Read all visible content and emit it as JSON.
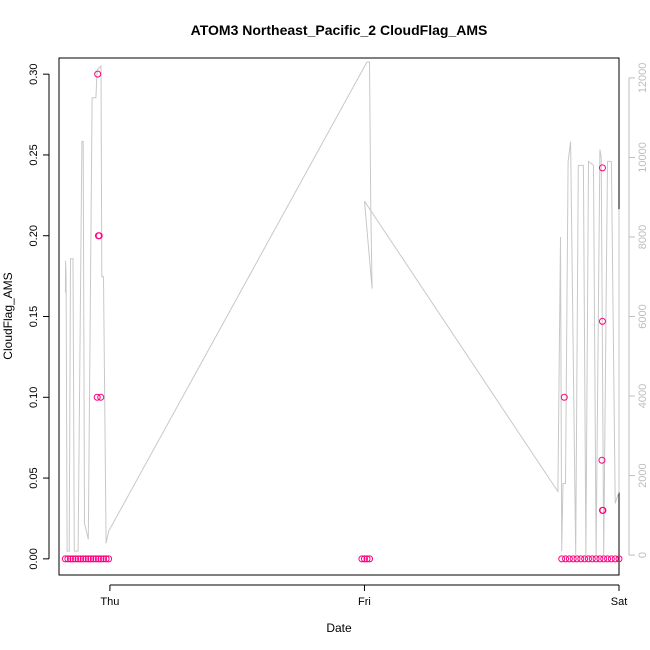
{
  "chart_data": {
    "type": "scatter",
    "title": "ATOM3 Northeast_Pacific_2 CloudFlag_AMS",
    "xlabel": "Date",
    "ylabel": "CloudFlag_AMS",
    "x_ticks": [
      "Thu",
      "Fri",
      "Sat"
    ],
    "x_range_days": [
      -0.2,
      2.0
    ],
    "y_ticks": [
      "0.00",
      "0.05",
      "0.10",
      "0.15",
      "0.20",
      "0.25",
      "0.30"
    ],
    "y_range": [
      -0.01,
      0.31
    ],
    "y2_ticks": [
      "0",
      "2000",
      "4000",
      "6000",
      "8000",
      "10000",
      "12000"
    ],
    "y2_range": [
      -500,
      12500
    ],
    "grid": false,
    "points_color": "#ff0080",
    "altitude_line_color": "#c8c8c8",
    "series": [
      {
        "values": [
          {
            "x": -0.175,
            "y": 0
          },
          {
            "x": -0.165,
            "y": 0
          },
          {
            "x": -0.155,
            "y": 0
          },
          {
            "x": -0.145,
            "y": 0
          },
          {
            "x": -0.135,
            "y": 0
          },
          {
            "x": -0.125,
            "y": 0
          },
          {
            "x": -0.115,
            "y": 0
          },
          {
            "x": -0.105,
            "y": 0
          },
          {
            "x": -0.095,
            "y": 0
          },
          {
            "x": -0.085,
            "y": 0
          },
          {
            "x": -0.075,
            "y": 0
          },
          {
            "x": -0.065,
            "y": 0
          },
          {
            "x": -0.055,
            "y": 0
          },
          {
            "x": -0.045,
            "y": 0
          },
          {
            "x": -0.035,
            "y": 0
          },
          {
            "x": -0.025,
            "y": 0
          },
          {
            "x": -0.015,
            "y": 0
          },
          {
            "x": -0.005,
            "y": 0
          },
          {
            "x": -0.048,
            "y": 0.3
          },
          {
            "x": -0.045,
            "y": 0.2
          },
          {
            "x": -0.042,
            "y": 0.2
          },
          {
            "x": -0.05,
            "y": 0.1
          },
          {
            "x": -0.036,
            "y": 0.1
          },
          {
            "x": 0.99,
            "y": 0
          },
          {
            "x": 1.0,
            "y": 0
          },
          {
            "x": 1.01,
            "y": 0
          },
          {
            "x": 1.02,
            "y": 0
          },
          {
            "x": 1.775,
            "y": 0
          },
          {
            "x": 1.79,
            "y": 0
          },
          {
            "x": 1.805,
            "y": 0
          },
          {
            "x": 1.82,
            "y": 0
          },
          {
            "x": 1.835,
            "y": 0
          },
          {
            "x": 1.85,
            "y": 0
          },
          {
            "x": 1.865,
            "y": 0
          },
          {
            "x": 1.88,
            "y": 0
          },
          {
            "x": 1.895,
            "y": 0
          },
          {
            "x": 1.91,
            "y": 0
          },
          {
            "x": 1.925,
            "y": 0
          },
          {
            "x": 1.94,
            "y": 0
          },
          {
            "x": 1.955,
            "y": 0
          },
          {
            "x": 1.97,
            "y": 0
          },
          {
            "x": 1.985,
            "y": 0
          },
          {
            "x": 2.0,
            "y": 0
          },
          {
            "x": 1.785,
            "y": 0.1
          },
          {
            "x": 1.935,
            "y": 0.242
          },
          {
            "x": 1.935,
            "y": 0.147
          },
          {
            "x": 1.933,
            "y": 0.061
          },
          {
            "x": 1.935,
            "y": 0.03
          },
          {
            "x": 1.937,
            "y": 0.03
          }
        ]
      },
      {
        "altitude_m": [
          {
            "x": -0.175,
            "y": 6600
          },
          {
            "x": -0.174,
            "y": 7400
          },
          {
            "x": -0.172,
            "y": 7000
          },
          {
            "x": -0.168,
            "y": 100
          },
          {
            "x": -0.16,
            "y": 100
          },
          {
            "x": -0.155,
            "y": 7450
          },
          {
            "x": -0.145,
            "y": 7450
          },
          {
            "x": -0.14,
            "y": 100
          },
          {
            "x": -0.125,
            "y": 100
          },
          {
            "x": -0.11,
            "y": 10400
          },
          {
            "x": -0.105,
            "y": 10400
          },
          {
            "x": -0.1,
            "y": 800
          },
          {
            "x": -0.085,
            "y": 400
          },
          {
            "x": -0.07,
            "y": 11500
          },
          {
            "x": -0.055,
            "y": 11500
          },
          {
            "x": -0.05,
            "y": 12200
          },
          {
            "x": -0.035,
            "y": 12300
          },
          {
            "x": -0.032,
            "y": 7000
          },
          {
            "x": -0.025,
            "y": 7000
          },
          {
            "x": -0.015,
            "y": 300
          },
          {
            "x": -0.005,
            "y": 600
          },
          {
            "x": 1.01,
            "y": 12400
          },
          {
            "x": 1.02,
            "y": 12400
          },
          {
            "x": 1.025,
            "y": 8700
          },
          {
            "x": 1.03,
            "y": 6700
          },
          {
            "x": 1.0,
            "y": 8900
          },
          {
            "x": 1.76,
            "y": 1600
          },
          {
            "x": 1.77,
            "y": 8000
          },
          {
            "x": 1.775,
            "y": 100
          },
          {
            "x": 1.78,
            "y": 1800
          },
          {
            "x": 1.79,
            "y": 1800
          },
          {
            "x": 1.8,
            "y": 9900
          },
          {
            "x": 1.81,
            "y": 10400
          },
          {
            "x": 1.83,
            "y": 0
          },
          {
            "x": 1.84,
            "y": 9800
          },
          {
            "x": 1.86,
            "y": 9800
          },
          {
            "x": 1.87,
            "y": 0
          },
          {
            "x": 1.88,
            "y": 9900
          },
          {
            "x": 1.9,
            "y": 9800
          },
          {
            "x": 1.91,
            "y": 0
          },
          {
            "x": 1.925,
            "y": 10200
          },
          {
            "x": 1.93,
            "y": 10000
          },
          {
            "x": 1.94,
            "y": 0
          },
          {
            "x": 1.955,
            "y": 9900
          },
          {
            "x": 1.97,
            "y": 9900
          },
          {
            "x": 1.985,
            "y": 1300
          },
          {
            "x": 2.0,
            "y": 1600
          },
          {
            "x": 2.0,
            "y": 8700
          }
        ]
      }
    ]
  }
}
